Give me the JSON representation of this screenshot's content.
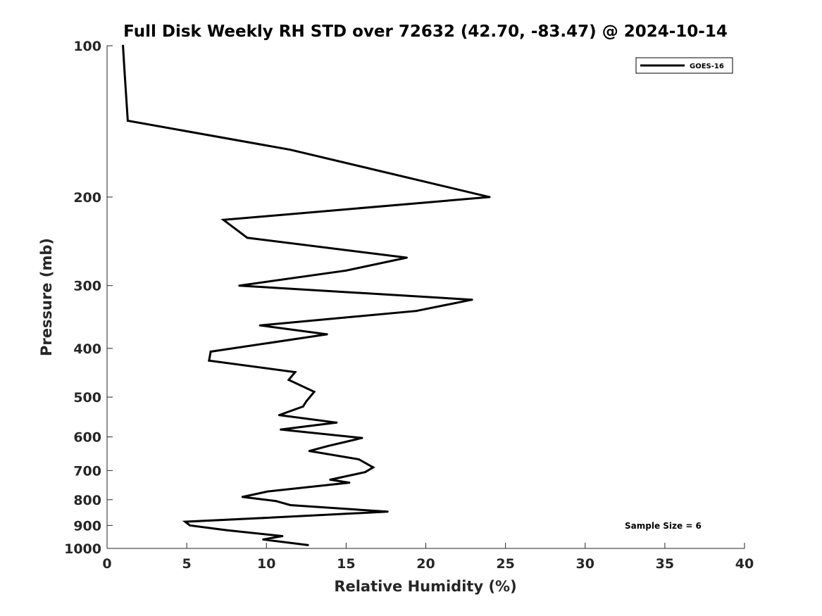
{
  "chart_data": {
    "type": "line",
    "title": "Full Disk Weekly RH STD over 72632 (42.70, -83.47) @ 2024-10-14",
    "xlabel": "Relative Humidity (%)",
    "ylabel": "Pressure (mb)",
    "xlim": [
      0,
      40
    ],
    "ylim": [
      100,
      1000
    ],
    "yscale": "log",
    "y_reversed": true,
    "xticks": [
      "0",
      "5",
      "10",
      "15",
      "20",
      "25",
      "30",
      "35",
      "40"
    ],
    "yticks": [
      "100",
      "200",
      "300",
      "400",
      "500",
      "600",
      "700",
      "800",
      "900",
      "1000"
    ],
    "grid": false,
    "legend_position": "top-right",
    "series": [
      {
        "name": "GOES-16",
        "color": "#000000",
        "x": [
          12.6,
          9.8,
          11.0,
          7.5,
          5.2,
          4.9,
          9.8,
          17.6,
          11.5,
          10.6,
          8.5,
          10.1,
          15.2,
          14.0,
          16.2,
          16.7,
          15.8,
          12.7,
          13.9,
          16.0,
          10.9,
          14.4,
          10.8,
          12.3,
          12.5,
          13.0,
          11.4,
          11.8,
          6.4,
          6.5,
          13.8,
          9.6,
          19.4,
          22.9,
          8.3,
          15.0,
          18.8,
          8.8,
          7.3,
          24.0,
          11.5,
          1.3,
          1.1,
          1.0
        ],
        "y": [
          985,
          960,
          945,
          920,
          900,
          885,
          870,
          845,
          820,
          805,
          790,
          770,
          740,
          730,
          705,
          690,
          665,
          640,
          625,
          603,
          580,
          562,
          543,
          522,
          510,
          488,
          462,
          446,
          423,
          406,
          375,
          360,
          337,
          320,
          300,
          280,
          264,
          241,
          222,
          200,
          161,
          141,
          113,
          100
        ]
      }
    ],
    "legend": [
      "GOES-16"
    ],
    "annotation": "Sample Size = 6"
  }
}
